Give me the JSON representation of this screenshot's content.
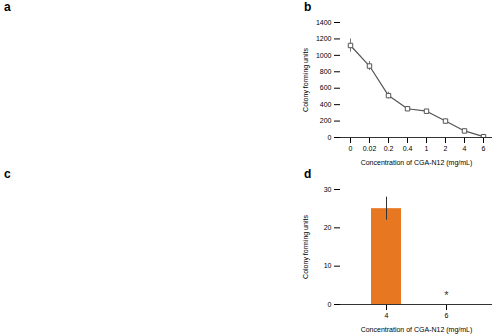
{
  "chart_data": [
    {
      "type": "blank",
      "title": "a"
    },
    {
      "type": "line",
      "title": "b",
      "xlabel": "Concentration of CGA-N12 (mg/mL)",
      "ylabel": "Colony forming units",
      "categories": [
        "0",
        "0.02",
        "0.2",
        "0.4",
        "1",
        "2",
        "4",
        "6"
      ],
      "values": [
        1120,
        870,
        510,
        350,
        320,
        200,
        80,
        10
      ],
      "yerr": [
        80,
        55,
        40,
        28,
        22,
        18,
        12,
        5
      ],
      "color": "#555555",
      "marker": "square",
      "ylim": [
        0,
        1400
      ],
      "yticks": [
        0,
        200,
        400,
        600,
        800,
        1000,
        1200,
        1400
      ],
      "grid": false
    },
    {
      "type": "blank",
      "title": "c"
    },
    {
      "type": "bar",
      "title": "d",
      "xlabel": "Concentration of CGA-N12 (mg/mL)",
      "ylabel": "Colony forming units",
      "categories": [
        "4",
        "6"
      ],
      "values": [
        25,
        0
      ],
      "yerr": [
        3,
        0
      ],
      "color": "#E87722",
      "ylim": [
        0,
        30
      ],
      "yticks": [
        0,
        10,
        20,
        30
      ],
      "annotations": [
        {
          "text": "*",
          "x": "6",
          "y": 1.2
        }
      ],
      "grid": false
    }
  ]
}
